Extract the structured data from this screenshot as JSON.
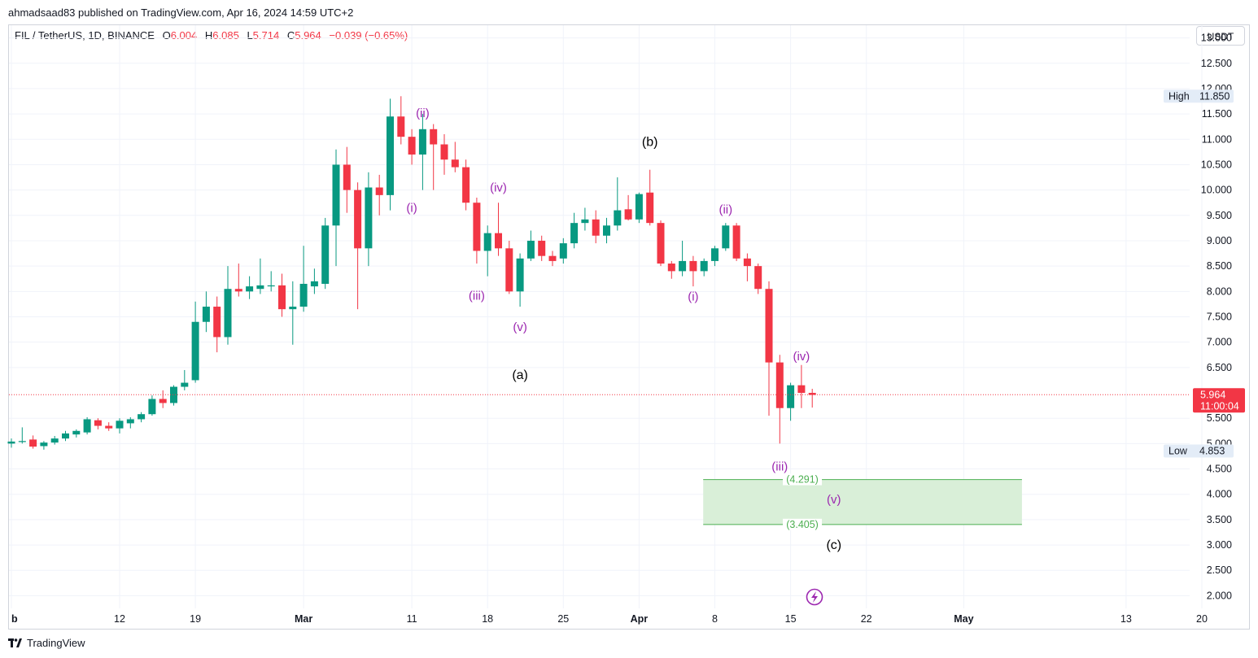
{
  "header": {
    "publisher_line": "ahmadsaad83 published on TradingView.com, Apr 16, 2024 14:59 UTC+2",
    "symbol": "FIL / TetherUS, 1D, BINANCE",
    "open_label": "O",
    "open": "6.004",
    "high_label": "H",
    "high": "6.085",
    "low_label": "L",
    "low": "5.714",
    "close_label": "C",
    "close": "5.964",
    "change": "−0.039 (−0.65%)",
    "currency_button": "USDT"
  },
  "footer": {
    "brand": "TradingView"
  },
  "colors": {
    "up": "#089981",
    "down": "#f23645",
    "wave": "#9c27b0",
    "zone_fill": "#d9efd8",
    "zone_line": "#4caf50",
    "grid": "#f0f3fa"
  },
  "chart_data": {
    "type": "candlestick",
    "title": "FIL / TetherUS, 1D, BINANCE",
    "y_axis": {
      "min": 1.75,
      "max": 13.25,
      "ticks": [
        "2.000",
        "2.500",
        "3.000",
        "3.500",
        "4.000",
        "4.500",
        "5.000",
        "5.500",
        "6.500",
        "7.000",
        "7.500",
        "8.000",
        "8.500",
        "9.000",
        "9.500",
        "10.000",
        "10.500",
        "11.000",
        "11.500",
        "12.000",
        "12.500",
        "13.000"
      ]
    },
    "x_axis": {
      "labels": [
        "b",
        "12",
        "19",
        "Mar",
        "11",
        "18",
        "25",
        "Apr",
        "8",
        "15",
        "22",
        "May",
        "13",
        "20"
      ],
      "label_days": [
        0,
        10,
        17,
        27,
        37,
        44,
        51,
        58,
        65,
        72,
        79,
        88,
        103,
        110
      ]
    },
    "candles": [
      {
        "d": 0,
        "o": 5.0,
        "h": 5.1,
        "l": 4.92,
        "c": 5.04
      },
      {
        "d": 1,
        "o": 5.03,
        "h": 5.32,
        "l": 5.0,
        "c": 5.05
      },
      {
        "d": 2,
        "o": 5.08,
        "h": 5.16,
        "l": 4.9,
        "c": 4.94
      },
      {
        "d": 3,
        "o": 4.95,
        "h": 5.05,
        "l": 4.88,
        "c": 5.02
      },
      {
        "d": 4,
        "o": 5.02,
        "h": 5.15,
        "l": 4.98,
        "c": 5.1
      },
      {
        "d": 5,
        "o": 5.1,
        "h": 5.25,
        "l": 5.05,
        "c": 5.2
      },
      {
        "d": 6,
        "o": 5.18,
        "h": 5.28,
        "l": 5.12,
        "c": 5.25
      },
      {
        "d": 7,
        "o": 5.22,
        "h": 5.52,
        "l": 5.18,
        "c": 5.48
      },
      {
        "d": 8,
        "o": 5.46,
        "h": 5.5,
        "l": 5.28,
        "c": 5.35
      },
      {
        "d": 9,
        "o": 5.35,
        "h": 5.42,
        "l": 5.25,
        "c": 5.3
      },
      {
        "d": 10,
        "o": 5.3,
        "h": 5.5,
        "l": 5.2,
        "c": 5.45
      },
      {
        "d": 11,
        "o": 5.4,
        "h": 5.52,
        "l": 5.3,
        "c": 5.48
      },
      {
        "d": 12,
        "o": 5.48,
        "h": 5.62,
        "l": 5.42,
        "c": 5.58
      },
      {
        "d": 13,
        "o": 5.58,
        "h": 5.95,
        "l": 5.55,
        "c": 5.88
      },
      {
        "d": 14,
        "o": 5.88,
        "h": 6.05,
        "l": 5.7,
        "c": 5.8
      },
      {
        "d": 15,
        "o": 5.8,
        "h": 6.15,
        "l": 5.75,
        "c": 6.12
      },
      {
        "d": 16,
        "o": 6.12,
        "h": 6.45,
        "l": 6.05,
        "c": 6.2
      },
      {
        "d": 17,
        "o": 6.25,
        "h": 7.8,
        "l": 6.2,
        "c": 7.4
      },
      {
        "d": 18,
        "o": 7.4,
        "h": 8.0,
        "l": 7.2,
        "c": 7.7
      },
      {
        "d": 19,
        "o": 7.7,
        "h": 7.9,
        "l": 6.8,
        "c": 7.1
      },
      {
        "d": 20,
        "o": 7.1,
        "h": 8.5,
        "l": 6.95,
        "c": 8.05
      },
      {
        "d": 21,
        "o": 8.05,
        "h": 8.55,
        "l": 7.9,
        "c": 8.0
      },
      {
        "d": 22,
        "o": 8.0,
        "h": 8.3,
        "l": 7.85,
        "c": 8.1
      },
      {
        "d": 23,
        "o": 8.05,
        "h": 8.65,
        "l": 7.95,
        "c": 8.12
      },
      {
        "d": 24,
        "o": 8.1,
        "h": 8.4,
        "l": 8.0,
        "c": 8.12
      },
      {
        "d": 25,
        "o": 8.12,
        "h": 8.35,
        "l": 7.5,
        "c": 7.65
      },
      {
        "d": 26,
        "o": 7.65,
        "h": 8.2,
        "l": 6.95,
        "c": 7.7
      },
      {
        "d": 27,
        "o": 7.7,
        "h": 8.9,
        "l": 7.6,
        "c": 8.15
      },
      {
        "d": 28,
        "o": 8.1,
        "h": 8.45,
        "l": 7.95,
        "c": 8.2
      },
      {
        "d": 29,
        "o": 8.15,
        "h": 9.45,
        "l": 8.05,
        "c": 9.3
      },
      {
        "d": 30,
        "o": 9.3,
        "h": 10.8,
        "l": 8.5,
        "c": 10.5
      },
      {
        "d": 31,
        "o": 10.5,
        "h": 10.85,
        "l": 9.55,
        "c": 10.0
      },
      {
        "d": 32,
        "o": 10.0,
        "h": 10.15,
        "l": 7.65,
        "c": 8.85
      },
      {
        "d": 33,
        "o": 8.85,
        "h": 10.35,
        "l": 8.5,
        "c": 10.05
      },
      {
        "d": 34,
        "o": 10.05,
        "h": 10.3,
        "l": 9.5,
        "c": 9.9
      },
      {
        "d": 35,
        "o": 9.9,
        "h": 11.8,
        "l": 9.6,
        "c": 11.45
      },
      {
        "d": 36,
        "o": 11.45,
        "h": 11.85,
        "l": 10.9,
        "c": 11.05
      },
      {
        "d": 37,
        "o": 11.05,
        "h": 11.2,
        "l": 10.5,
        "c": 10.7
      },
      {
        "d": 38,
        "o": 10.7,
        "h": 11.5,
        "l": 10.0,
        "c": 11.2
      },
      {
        "d": 39,
        "o": 11.2,
        "h": 11.3,
        "l": 10.0,
        "c": 10.9
      },
      {
        "d": 40,
        "o": 10.9,
        "h": 11.1,
        "l": 10.3,
        "c": 10.6
      },
      {
        "d": 41,
        "o": 10.6,
        "h": 10.95,
        "l": 10.35,
        "c": 10.45
      },
      {
        "d": 42,
        "o": 10.45,
        "h": 10.6,
        "l": 9.6,
        "c": 9.75
      },
      {
        "d": 43,
        "o": 9.75,
        "h": 9.85,
        "l": 8.55,
        "c": 8.8
      },
      {
        "d": 44,
        "o": 8.8,
        "h": 9.3,
        "l": 8.3,
        "c": 9.15
      },
      {
        "d": 45,
        "o": 9.15,
        "h": 9.75,
        "l": 8.7,
        "c": 8.85
      },
      {
        "d": 46,
        "o": 8.85,
        "h": 9.0,
        "l": 7.95,
        "c": 8.0
      },
      {
        "d": 47,
        "o": 8.0,
        "h": 8.75,
        "l": 7.7,
        "c": 8.65
      },
      {
        "d": 48,
        "o": 8.65,
        "h": 9.2,
        "l": 8.6,
        "c": 9.0
      },
      {
        "d": 49,
        "o": 9.0,
        "h": 9.1,
        "l": 8.6,
        "c": 8.7
      },
      {
        "d": 50,
        "o": 8.7,
        "h": 8.8,
        "l": 8.5,
        "c": 8.6
      },
      {
        "d": 51,
        "o": 8.65,
        "h": 9.05,
        "l": 8.55,
        "c": 8.95
      },
      {
        "d": 52,
        "o": 8.95,
        "h": 9.55,
        "l": 8.85,
        "c": 9.35
      },
      {
        "d": 53,
        "o": 9.35,
        "h": 9.65,
        "l": 9.2,
        "c": 9.42
      },
      {
        "d": 54,
        "o": 9.42,
        "h": 9.6,
        "l": 8.95,
        "c": 9.1
      },
      {
        "d": 55,
        "o": 9.1,
        "h": 9.45,
        "l": 8.95,
        "c": 9.3
      },
      {
        "d": 56,
        "o": 9.3,
        "h": 10.25,
        "l": 9.2,
        "c": 9.6
      },
      {
        "d": 57,
        "o": 9.62,
        "h": 9.9,
        "l": 9.4,
        "c": 9.42
      },
      {
        "d": 58,
        "o": 9.42,
        "h": 9.95,
        "l": 9.35,
        "c": 9.92
      },
      {
        "d": 59,
        "o": 9.95,
        "h": 10.4,
        "l": 9.3,
        "c": 9.35
      },
      {
        "d": 60,
        "o": 9.35,
        "h": 9.4,
        "l": 8.5,
        "c": 8.55
      },
      {
        "d": 61,
        "o": 8.55,
        "h": 8.6,
        "l": 8.25,
        "c": 8.4
      },
      {
        "d": 62,
        "o": 8.4,
        "h": 9.0,
        "l": 8.3,
        "c": 8.6
      },
      {
        "d": 63,
        "o": 8.6,
        "h": 8.7,
        "l": 8.1,
        "c": 8.4
      },
      {
        "d": 64,
        "o": 8.4,
        "h": 8.65,
        "l": 8.3,
        "c": 8.6
      },
      {
        "d": 65,
        "o": 8.6,
        "h": 8.9,
        "l": 8.5,
        "c": 8.85
      },
      {
        "d": 66,
        "o": 8.85,
        "h": 9.35,
        "l": 8.8,
        "c": 9.3
      },
      {
        "d": 67,
        "o": 9.3,
        "h": 9.35,
        "l": 8.6,
        "c": 8.65
      },
      {
        "d": 68,
        "o": 8.65,
        "h": 8.75,
        "l": 8.2,
        "c": 8.5
      },
      {
        "d": 69,
        "o": 8.5,
        "h": 8.55,
        "l": 7.95,
        "c": 8.05
      },
      {
        "d": 70,
        "o": 8.05,
        "h": 8.2,
        "l": 5.55,
        "c": 6.6
      },
      {
        "d": 71,
        "o": 6.6,
        "h": 6.75,
        "l": 5.0,
        "c": 5.7
      },
      {
        "d": 72,
        "o": 5.7,
        "h": 6.2,
        "l": 5.45,
        "c": 6.15
      },
      {
        "d": 73,
        "o": 6.15,
        "h": 6.55,
        "l": 5.7,
        "c": 6.0
      },
      {
        "d": 74,
        "o": 6.0,
        "h": 6.08,
        "l": 5.71,
        "c": 5.96
      }
    ],
    "last_price": {
      "value": 5.964,
      "label": "5.964",
      "countdown": "11:00:04"
    },
    "high_marker": {
      "label": "High",
      "value": 11.85,
      "value_text": "11.850"
    },
    "low_marker": {
      "label": "Low",
      "value": 4.853,
      "value_text": "4.853"
    },
    "target_zone": {
      "top": 4.291,
      "bottom": 3.405,
      "top_label": "(4.291)",
      "bottom_label": "(3.405)",
      "start_day": 64,
      "end_day": 93
    },
    "wave_labels": [
      {
        "text": "(i)",
        "day": 37,
        "price": 9.65,
        "style": "minor"
      },
      {
        "text": "(ii)",
        "day": 38,
        "price": 11.52,
        "style": "minor"
      },
      {
        "text": "(iii)",
        "day": 43,
        "price": 7.92,
        "style": "minor"
      },
      {
        "text": "(iv)",
        "day": 45,
        "price": 10.05,
        "style": "minor"
      },
      {
        "text": "(v)",
        "day": 47,
        "price": 7.3,
        "style": "minor"
      },
      {
        "text": "(a)",
        "day": 47,
        "price": 6.35,
        "style": "major"
      },
      {
        "text": "(b)",
        "day": 59,
        "price": 10.95,
        "style": "major"
      },
      {
        "text": "(i)",
        "day": 63,
        "price": 7.9,
        "style": "minor"
      },
      {
        "text": "(ii)",
        "day": 66,
        "price": 9.62,
        "style": "minor"
      },
      {
        "text": "(iii)",
        "day": 71,
        "price": 4.55,
        "style": "minor"
      },
      {
        "text": "(iv)",
        "day": 73,
        "price": 6.72,
        "style": "minor"
      },
      {
        "text": "(v)",
        "day": 76,
        "price": 3.9,
        "style": "minor"
      },
      {
        "text": "(c)",
        "day": 76,
        "price": 3.0,
        "style": "major"
      }
    ]
  }
}
